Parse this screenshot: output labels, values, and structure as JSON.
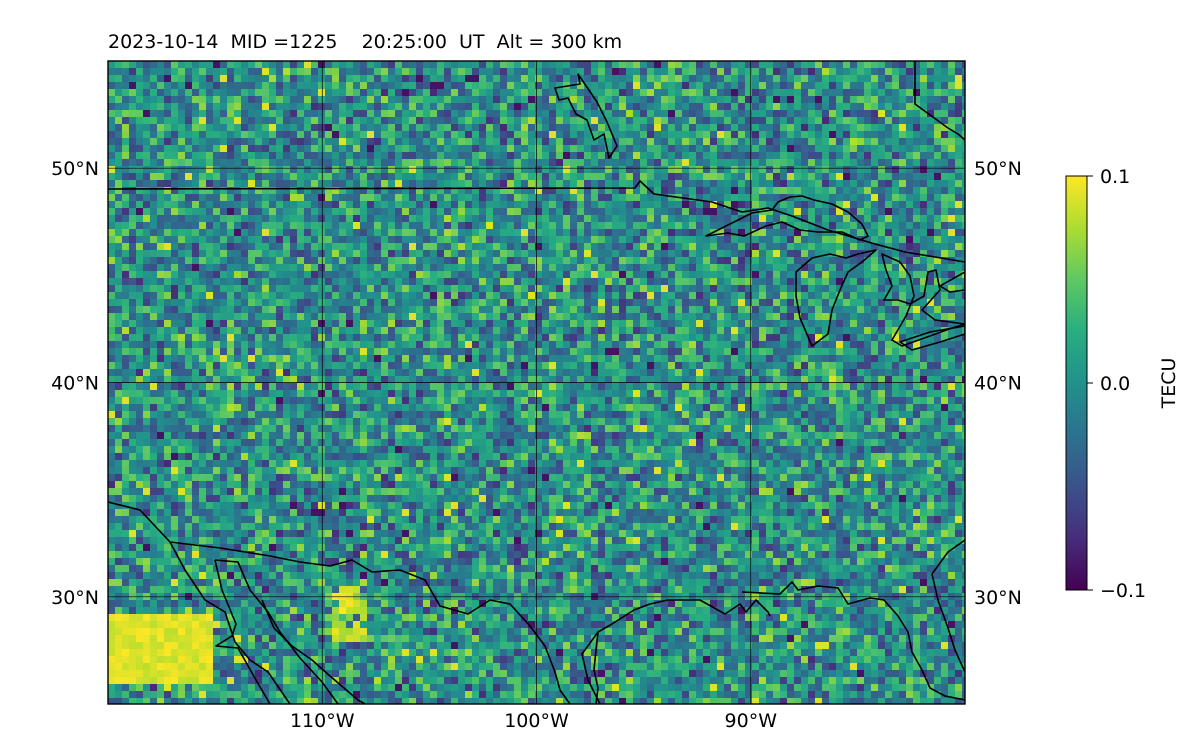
{
  "title": "2023-10-14  MID =1225    20:25:00  UT  Alt = 300 km",
  "map": {
    "extent": {
      "lon": [
        -120,
        -80
      ],
      "lat": [
        25,
        55
      ]
    },
    "lat_gridlines": [
      30,
      40,
      50
    ],
    "lon_gridlines": [
      -110,
      -100,
      -90
    ],
    "lat_labels": [
      "30°N",
      "40°N",
      "50°N"
    ],
    "lon_labels": [
      "110°W",
      "100°W",
      "90°W"
    ],
    "field": "TEC perturbation",
    "colormap": "viridis"
  },
  "colorbar": {
    "label": "TECU",
    "range": [
      -0.1,
      0.1
    ],
    "tick_values": [
      0.1,
      0.0,
      -0.1
    ],
    "tick_labels": [
      "0.1",
      "0.0",
      "−0.1"
    ]
  },
  "colors": {
    "viridis_low": "#440154",
    "viridis_mid": "#21918c",
    "viridis_high": "#fde725",
    "coastline": "#000000",
    "gridline": "#000000"
  }
}
